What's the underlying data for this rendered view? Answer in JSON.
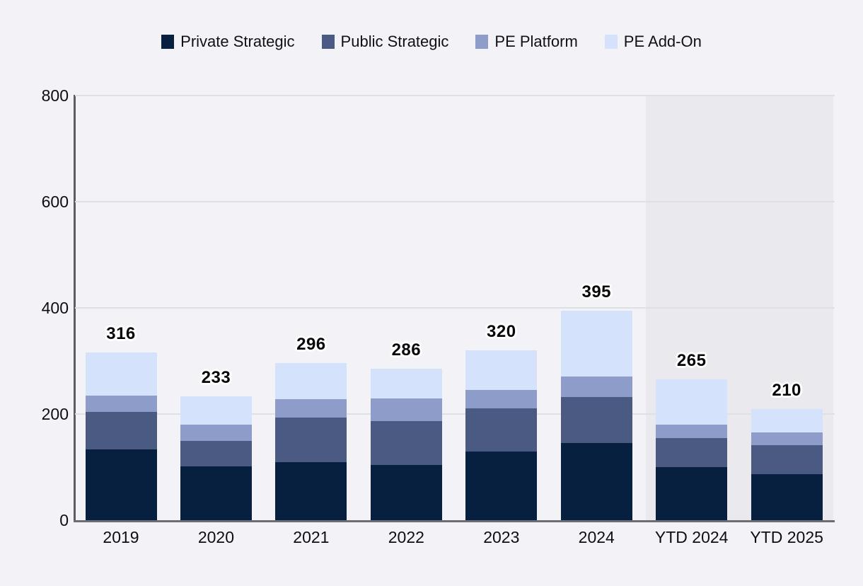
{
  "legend": {
    "items": [
      {
        "label": "Private Strategic",
        "color": "#072040"
      },
      {
        "label": "Public Strategic",
        "color": "#4a5a83"
      },
      {
        "label": "PE Platform",
        "color": "#8e9cc9"
      },
      {
        "label": "PE Add-On",
        "color": "#d5e2fb"
      }
    ]
  },
  "chart_data": {
    "type": "bar",
    "stacked": true,
    "title": "",
    "xlabel": "",
    "ylabel": "",
    "categories": [
      "2019",
      "2020",
      "2021",
      "2022",
      "2023",
      "2024",
      "YTD 2024",
      "YTD 2025"
    ],
    "series": [
      {
        "name": "Private Strategic",
        "color": "#072040",
        "values": [
          133,
          102,
          110,
          104,
          129,
          145,
          100,
          87
        ]
      },
      {
        "name": "Public Strategic",
        "color": "#4a5a83",
        "values": [
          71,
          48,
          84,
          83,
          82,
          87,
          55,
          55
        ]
      },
      {
        "name": "PE Platform",
        "color": "#8e9cc9",
        "values": [
          31,
          30,
          34,
          42,
          34,
          39,
          25,
          24
        ]
      },
      {
        "name": "PE Add-On",
        "color": "#d5e2fb",
        "values": [
          81,
          53,
          68,
          57,
          75,
          124,
          85,
          44
        ]
      }
    ],
    "totals": [
      316,
      233,
      296,
      286,
      320,
      395,
      265,
      210
    ],
    "y_axis": {
      "ticks": [
        0,
        200,
        400,
        600,
        800
      ],
      "min": 0,
      "max": 800
    },
    "grid": true,
    "legend_position": "top",
    "highlight_region": {
      "categories": [
        "YTD 2024",
        "YTD 2025"
      ],
      "color": "#e9e9ee"
    }
  },
  "colors": {
    "background": "#f3f3f7",
    "gridline": "#dfe0e4",
    "y_axis_line": "#5b5d64",
    "x_axis_line": "#6b6d74",
    "highlight_region": "#e9e9ee",
    "text": "#0d0e12"
  }
}
